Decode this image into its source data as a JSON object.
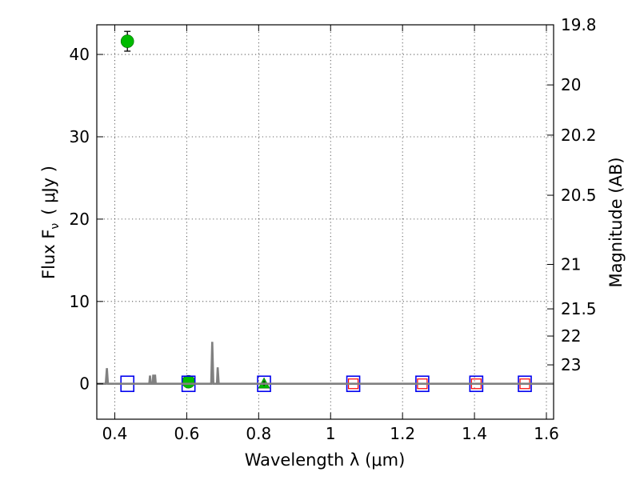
{
  "chart_data": {
    "type": "scatter",
    "xlabel": "Wavelength  λ (μm)",
    "ylabel": "Flux  F",
    "ylabel_sub": "ν",
    "ylabel_unit": "( μJy )",
    "y2label": "Magnitude (AB)",
    "xlim": [
      0.35,
      1.62
    ],
    "ylim": [
      -4.3,
      43.6
    ],
    "grid": true,
    "x_ticks": [
      {
        "value": 0.4,
        "label": "0.4"
      },
      {
        "value": 0.6,
        "label": "0.6"
      },
      {
        "value": 0.8,
        "label": "0.8"
      },
      {
        "value": 1.0,
        "label": "1"
      },
      {
        "value": 1.2,
        "label": "1.2"
      },
      {
        "value": 1.4,
        "label": "1.4"
      },
      {
        "value": 1.6,
        "label": "1.6"
      }
    ],
    "y_ticks": [
      {
        "value": 0,
        "label": "0"
      },
      {
        "value": 10,
        "label": "10"
      },
      {
        "value": 20,
        "label": "20"
      },
      {
        "value": 30,
        "label": "30"
      },
      {
        "value": 40,
        "label": "40"
      }
    ],
    "y2_ticks": [
      {
        "label": "19.8",
        "flux": 43.6
      },
      {
        "label": "20",
        "flux": 36.3
      },
      {
        "label": "20.2",
        "flux": 30.2
      },
      {
        "label": "20.5",
        "flux": 22.9
      },
      {
        "label": "21",
        "flux": 14.5
      },
      {
        "label": "21.5",
        "flux": 9.1
      },
      {
        "label": "22",
        "flux": 5.8
      },
      {
        "label": "23",
        "flux": 2.3
      }
    ],
    "series": [
      {
        "marker": "circle",
        "color": "#00bb00",
        "points": [
          {
            "x": 0.435,
            "y": 41.6,
            "err": 1.2
          },
          {
            "x": 0.605,
            "y": 0.25,
            "err": 0.3
          }
        ]
      },
      {
        "marker": "triangle",
        "color": "#00bb00",
        "points": [
          {
            "x": 0.815,
            "y": 0.05,
            "err": 0.3
          }
        ]
      },
      {
        "marker": "square-open",
        "color": "#0000ee",
        "points": [
          {
            "x": 0.435,
            "y": 0.0
          },
          {
            "x": 0.605,
            "y": 0.0
          },
          {
            "x": 0.815,
            "y": 0.0
          },
          {
            "x": 1.063,
            "y": 0.0
          },
          {
            "x": 1.255,
            "y": 0.0
          },
          {
            "x": 1.405,
            "y": 0.0
          },
          {
            "x": 1.54,
            "y": 0.0
          }
        ]
      },
      {
        "marker": "square-open-small",
        "color": "#ff0000",
        "points": [
          {
            "x": 1.063,
            "y": 0.0
          },
          {
            "x": 1.255,
            "y": 0.0
          },
          {
            "x": 1.405,
            "y": 0.0
          },
          {
            "x": 1.54,
            "y": 0.0
          }
        ]
      },
      {
        "marker": "line",
        "color": "#808080",
        "points": [
          {
            "x": 0.35,
            "y": 0.0
          },
          {
            "x": 0.375,
            "y": 0.0
          },
          {
            "x": 0.378,
            "y": 1.9
          },
          {
            "x": 0.381,
            "y": 0.0
          },
          {
            "x": 0.496,
            "y": 0.0
          },
          {
            "x": 0.498,
            "y": 1.0
          },
          {
            "x": 0.5,
            "y": 0.0
          },
          {
            "x": 0.505,
            "y": 0.0
          },
          {
            "x": 0.507,
            "y": 1.1
          },
          {
            "x": 0.509,
            "y": 0.0
          },
          {
            "x": 0.51,
            "y": 0.0
          },
          {
            "x": 0.512,
            "y": 1.1
          },
          {
            "x": 0.514,
            "y": 0.0
          },
          {
            "x": 0.668,
            "y": 0.0
          },
          {
            "x": 0.671,
            "y": 5.1
          },
          {
            "x": 0.674,
            "y": 0.0
          },
          {
            "x": 0.684,
            "y": 0.0
          },
          {
            "x": 0.686,
            "y": 2.0
          },
          {
            "x": 0.689,
            "y": 0.0
          },
          {
            "x": 1.62,
            "y": 0.0
          }
        ]
      },
      {
        "marker": "dashed-line",
        "color": "#808080",
        "points": [
          {
            "x": 0.35,
            "y": 0.0
          },
          {
            "x": 1.62,
            "y": 0.0
          }
        ]
      }
    ]
  }
}
